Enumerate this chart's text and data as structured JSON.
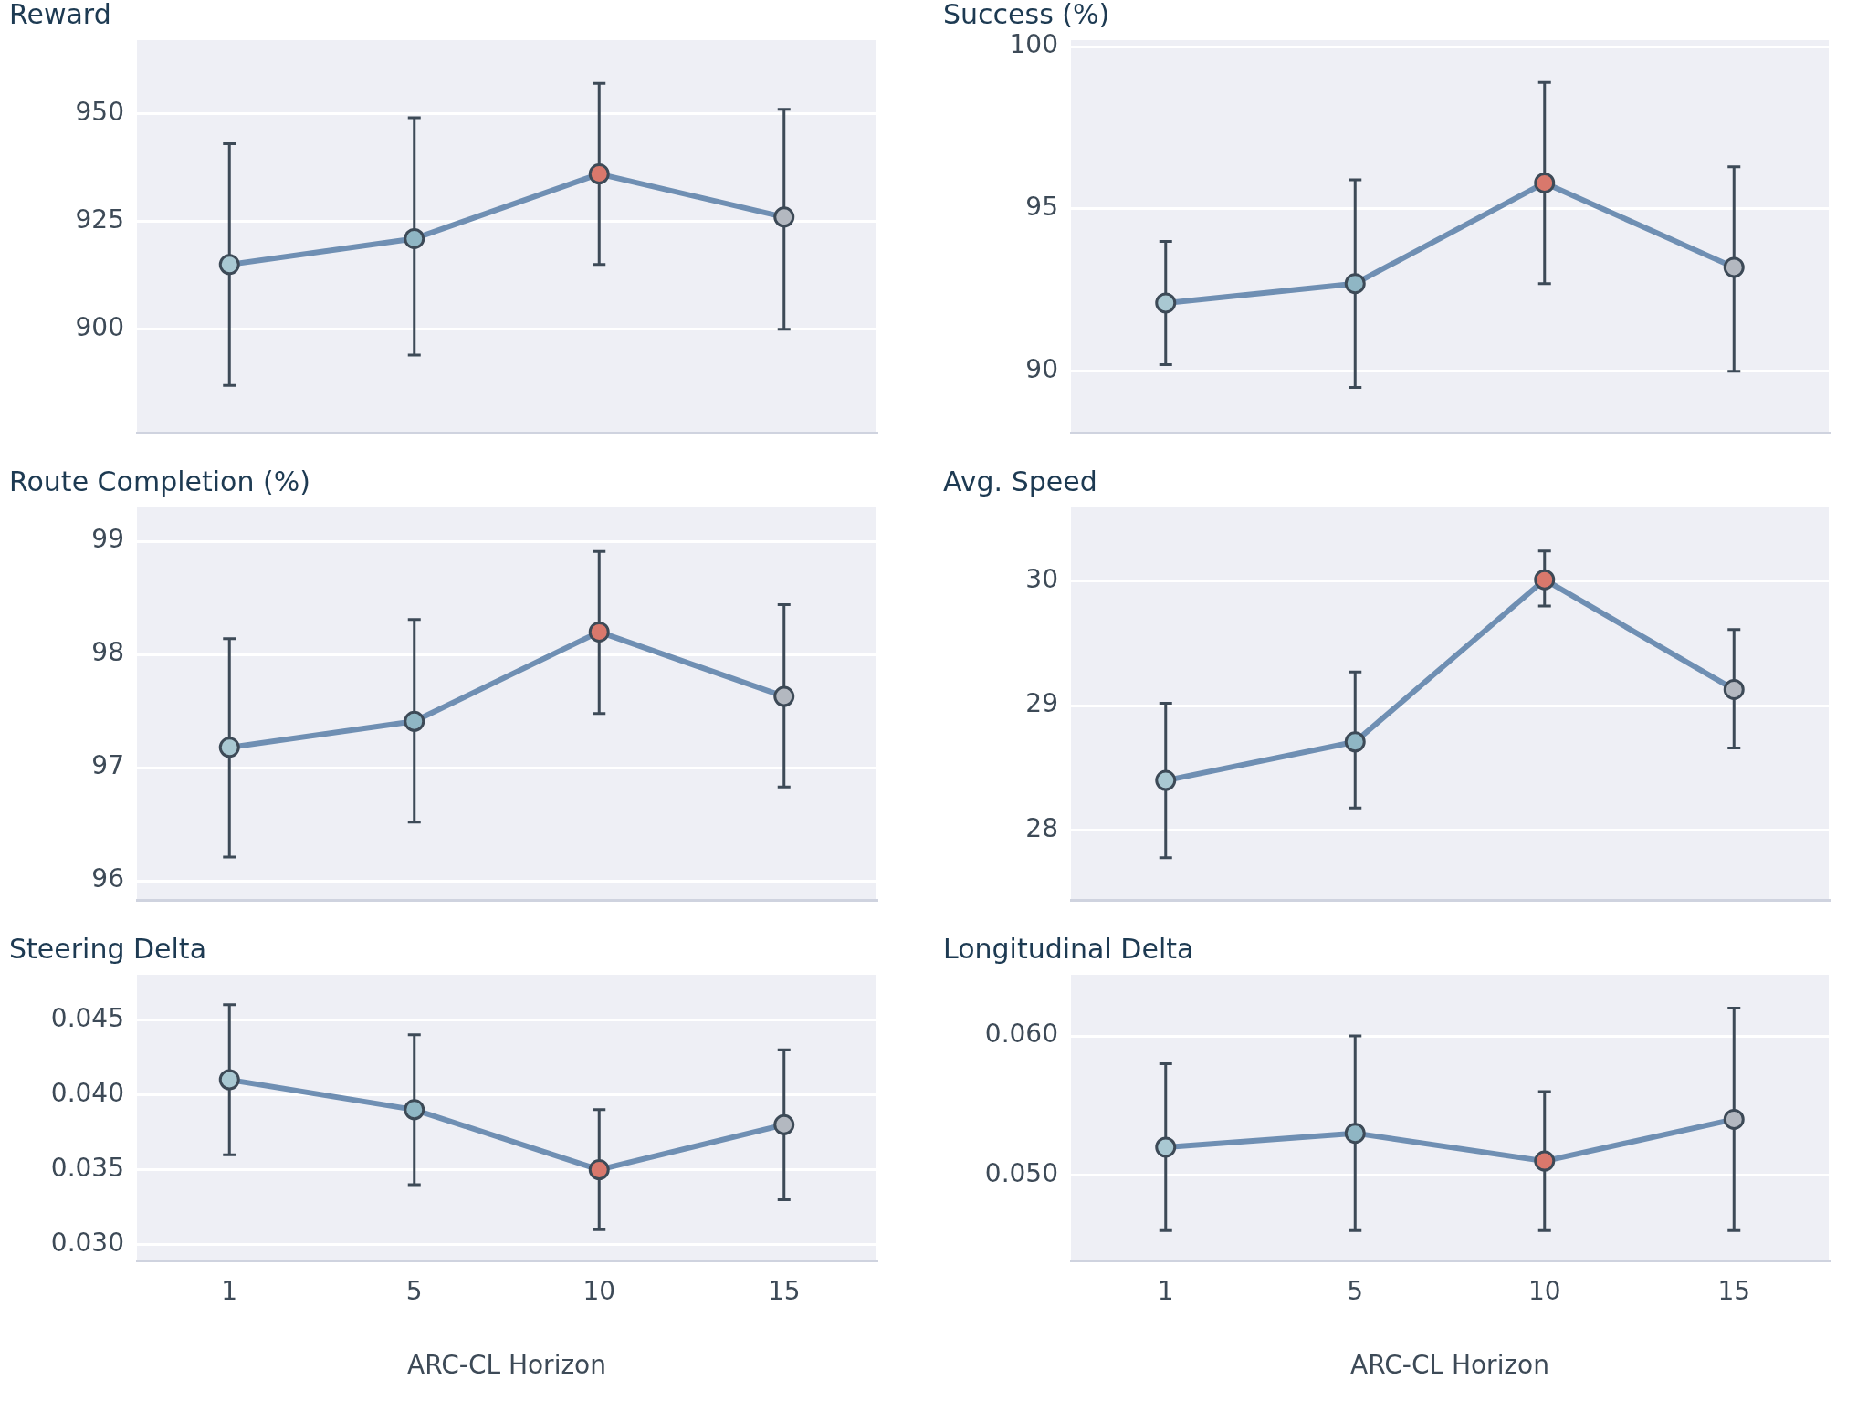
{
  "chart_data": [
    {
      "type": "line",
      "title": "Reward",
      "categories": [
        "1",
        "5",
        "10",
        "15"
      ],
      "series": [
        {
          "color": "#6f8fb3",
          "colors": [
            "#a9c8d2",
            "#8fb6c4",
            "#d9786c",
            "#b3b8c0"
          ],
          "values": [
            915,
            921,
            936,
            926
          ],
          "errors": [
            [
              887,
              943
            ],
            [
              894,
              949
            ],
            [
              915,
              957
            ],
            [
              900,
              951
            ]
          ]
        }
      ],
      "ylim": [
        876,
        967
      ],
      "yticks": [
        900,
        925,
        950
      ],
      "grid": "y",
      "marker": "circle",
      "tick_labels": "y"
    },
    {
      "type": "line",
      "title": "Success (%)",
      "categories": [
        "1",
        "5",
        "10",
        "15"
      ],
      "series": [
        {
          "color": "#6f8fb3",
          "colors": [
            "#a9c8d2",
            "#8fb6c4",
            "#d9786c",
            "#b3b8c0"
          ],
          "values": [
            92.1,
            92.7,
            95.8,
            93.2
          ],
          "errors": [
            [
              90.2,
              94.0
            ],
            [
              89.5,
              95.9
            ],
            [
              92.7,
              98.9
            ],
            [
              90.0,
              96.3
            ]
          ]
        }
      ],
      "ylim": [
        88.1,
        100.2
      ],
      "yticks": [
        90,
        95,
        100
      ],
      "grid": "y",
      "marker": "circle",
      "tick_labels": "y"
    },
    {
      "type": "line",
      "title": "Route Completion (%)",
      "categories": [
        "1",
        "5",
        "10",
        "15"
      ],
      "series": [
        {
          "color": "#6f8fb3",
          "colors": [
            "#a9c8d2",
            "#8fb6c4",
            "#d9786c",
            "#b3b8c0"
          ],
          "values": [
            97.18,
            97.41,
            98.2,
            97.63
          ],
          "errors": [
            [
              96.21,
              98.14
            ],
            [
              96.52,
              98.31
            ],
            [
              97.48,
              98.91
            ],
            [
              96.83,
              98.44
            ]
          ]
        }
      ],
      "ylim": [
        95.83,
        99.3
      ],
      "yticks": [
        96,
        97,
        98,
        99
      ],
      "grid": "y",
      "marker": "circle",
      "tick_labels": "y"
    },
    {
      "type": "line",
      "title": "Avg. Speed",
      "categories": [
        "1",
        "5",
        "10",
        "15"
      ],
      "series": [
        {
          "color": "#6f8fb3",
          "colors": [
            "#a9c8d2",
            "#8fb6c4",
            "#d9786c",
            "#b3b8c0"
          ],
          "values": [
            28.4,
            28.71,
            30.01,
            29.13
          ],
          "errors": [
            [
              27.78,
              29.02
            ],
            [
              28.18,
              29.27
            ],
            [
              29.8,
              30.24
            ],
            [
              28.66,
              29.61
            ]
          ]
        }
      ],
      "ylim": [
        27.44,
        30.59
      ],
      "yticks": [
        28,
        29,
        30
      ],
      "grid": "y",
      "marker": "circle",
      "tick_labels": "y"
    },
    {
      "type": "line",
      "title": "Steering Delta",
      "xlabel": "ARC-CL Horizon",
      "categories": [
        "1",
        "5",
        "10",
        "15"
      ],
      "series": [
        {
          "color": "#6f8fb3",
          "colors": [
            "#a9c8d2",
            "#8fb6c4",
            "#d9786c",
            "#b3b8c0"
          ],
          "values": [
            0.041,
            0.039,
            0.035,
            0.038
          ],
          "errors": [
            [
              0.036,
              0.046
            ],
            [
              0.034,
              0.044
            ],
            [
              0.031,
              0.039
            ],
            [
              0.033,
              0.043
            ]
          ]
        }
      ],
      "ylim": [
        0.0289,
        0.048
      ],
      "yticks": [
        {
          "value": 0.03,
          "label": "0.030"
        },
        {
          "value": 0.035,
          "label": "0.035"
        },
        {
          "value": 0.04,
          "label": "0.040"
        },
        {
          "value": 0.045,
          "label": "0.045"
        }
      ],
      "grid": "y",
      "marker": "circle"
    },
    {
      "type": "line",
      "title": "Longitudinal Delta",
      "xlabel": "ARC-CL Horizon",
      "categories": [
        "1",
        "5",
        "10",
        "15"
      ],
      "series": [
        {
          "color": "#6f8fb3",
          "colors": [
            "#a9c8d2",
            "#8fb6c4",
            "#d9786c",
            "#b3b8c0"
          ],
          "values": [
            0.052,
            0.053,
            0.051,
            0.054
          ],
          "errors": [
            [
              0.046,
              0.058
            ],
            [
              0.046,
              0.06
            ],
            [
              0.046,
              0.056
            ],
            [
              0.046,
              0.062
            ]
          ]
        }
      ],
      "ylim": [
        0.0438,
        0.0644
      ],
      "yticks": [
        {
          "value": 0.05,
          "label": "0.050"
        },
        {
          "value": 0.06,
          "label": "0.060"
        }
      ],
      "grid": "y",
      "marker": "circle"
    }
  ]
}
